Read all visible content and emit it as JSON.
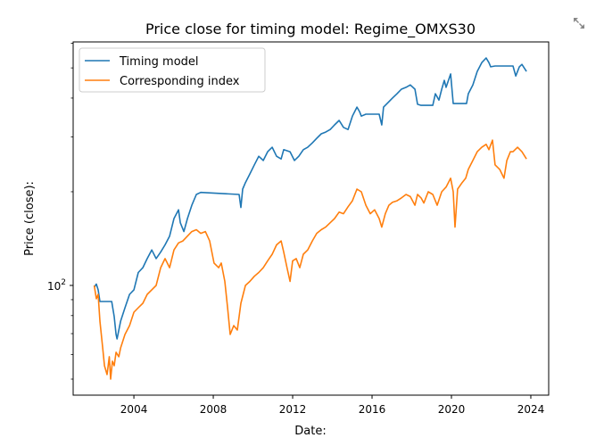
{
  "toolbar": {
    "expand_icon": "expand-arrows-icon"
  },
  "chart_data": {
    "type": "line",
    "title": "Price close for timing model: Regime_OMXS30",
    "xlabel": "Date:",
    "ylabel": "Price (close):",
    "yscale": "log",
    "xlim": [
      2000.94,
      2024.9
    ],
    "ylim": [
      44.4,
      606
    ],
    "x_ticks": [
      2004,
      2008,
      2012,
      2016,
      2020,
      2024
    ],
    "x_tick_labels": [
      "2004",
      "2008",
      "2012",
      "2016",
      "2020",
      "2024"
    ],
    "y_major_ticks": [
      100
    ],
    "y_tick_labels": {
      "base": "10",
      "exp": "2"
    },
    "y_minor_ticks": [
      50,
      60,
      70,
      80,
      90,
      200,
      300,
      400,
      500,
      600
    ],
    "grid": false,
    "legend_position": "top-left",
    "series": [
      {
        "name": "Timing model",
        "color": "#1f77b4",
        "points": [
          [
            2002.0,
            98.7
          ],
          [
            2002.11,
            101
          ],
          [
            2002.2,
            96.8
          ],
          [
            2002.29,
            88.8
          ],
          [
            2002.88,
            88.8
          ],
          [
            2003.01,
            79.4
          ],
          [
            2003.1,
            69.6
          ],
          [
            2003.15,
            67.3
          ],
          [
            2003.33,
            76.8
          ],
          [
            2003.55,
            84.8
          ],
          [
            2003.78,
            93.6
          ],
          [
            2004.0,
            96.8
          ],
          [
            2004.22,
            110
          ],
          [
            2004.45,
            114
          ],
          [
            2004.67,
            122
          ],
          [
            2004.9,
            130
          ],
          [
            2005.12,
            122
          ],
          [
            2005.35,
            128
          ],
          [
            2005.57,
            135
          ],
          [
            2005.8,
            144
          ],
          [
            2006.02,
            164
          ],
          [
            2006.25,
            175
          ],
          [
            2006.34,
            159
          ],
          [
            2006.52,
            149
          ],
          [
            2006.7,
            164
          ],
          [
            2006.92,
            181
          ],
          [
            2007.15,
            196
          ],
          [
            2007.37,
            199
          ],
          [
            2009.3,
            196
          ],
          [
            2009.39,
            178
          ],
          [
            2009.48,
            204
          ],
          [
            2009.62,
            214
          ],
          [
            2009.84,
            228
          ],
          [
            2010.07,
            244
          ],
          [
            2010.29,
            260
          ],
          [
            2010.52,
            252
          ],
          [
            2010.74,
            269
          ],
          [
            2010.97,
            278
          ],
          [
            2011.19,
            260
          ],
          [
            2011.42,
            255
          ],
          [
            2011.55,
            273
          ],
          [
            2011.87,
            269
          ],
          [
            2012.09,
            252
          ],
          [
            2012.31,
            260
          ],
          [
            2012.54,
            273
          ],
          [
            2012.76,
            278
          ],
          [
            2012.99,
            287
          ],
          [
            2013.21,
            297
          ],
          [
            2013.44,
            307
          ],
          [
            2013.66,
            311
          ],
          [
            2013.89,
            317
          ],
          [
            2014.11,
            328
          ],
          [
            2014.34,
            339
          ],
          [
            2014.56,
            322
          ],
          [
            2014.79,
            317
          ],
          [
            2015.01,
            350
          ],
          [
            2015.24,
            374
          ],
          [
            2015.37,
            362
          ],
          [
            2015.46,
            350
          ],
          [
            2015.69,
            355
          ],
          [
            2016.36,
            355
          ],
          [
            2016.49,
            328
          ],
          [
            2016.58,
            374
          ],
          [
            2016.81,
            387
          ],
          [
            2017.03,
            400
          ],
          [
            2017.26,
            413
          ],
          [
            2017.48,
            427
          ],
          [
            2017.71,
            433
          ],
          [
            2017.93,
            441
          ],
          [
            2018.16,
            427
          ],
          [
            2018.29,
            382
          ],
          [
            2018.47,
            379
          ],
          [
            2019.06,
            379
          ],
          [
            2019.19,
            413
          ],
          [
            2019.37,
            394
          ],
          [
            2019.51,
            427
          ],
          [
            2019.64,
            456
          ],
          [
            2019.73,
            433
          ],
          [
            2019.96,
            478
          ],
          [
            2020.09,
            384
          ],
          [
            2020.76,
            384
          ],
          [
            2020.85,
            413
          ],
          [
            2021.08,
            441
          ],
          [
            2021.3,
            487
          ],
          [
            2021.53,
            520
          ],
          [
            2021.75,
            538
          ],
          [
            2021.89,
            520
          ],
          [
            2021.98,
            504
          ],
          [
            2022.2,
            507
          ],
          [
            2023.1,
            507
          ],
          [
            2023.24,
            471
          ],
          [
            2023.42,
            504
          ],
          [
            2023.55,
            513
          ],
          [
            2023.78,
            487
          ]
        ]
      },
      {
        "name": "Corresponding index",
        "color": "#ff7f0e",
        "points": [
          [
            2002.0,
            100
          ],
          [
            2002.11,
            90.6
          ],
          [
            2002.2,
            93.6
          ],
          [
            2002.29,
            76.8
          ],
          [
            2002.43,
            63.0
          ],
          [
            2002.52,
            55.2
          ],
          [
            2002.65,
            51.7
          ],
          [
            2002.76,
            59.0
          ],
          [
            2002.83,
            50.0
          ],
          [
            2002.92,
            57.1
          ],
          [
            2003.01,
            55.2
          ],
          [
            2003.1,
            61.0
          ],
          [
            2003.24,
            59.0
          ],
          [
            2003.33,
            63.0
          ],
          [
            2003.55,
            69.6
          ],
          [
            2003.78,
            74.3
          ],
          [
            2004.0,
            82.0
          ],
          [
            2004.22,
            84.8
          ],
          [
            2004.45,
            87.6
          ],
          [
            2004.67,
            93.6
          ],
          [
            2004.9,
            96.8
          ],
          [
            2005.12,
            100
          ],
          [
            2005.35,
            114
          ],
          [
            2005.57,
            122
          ],
          [
            2005.8,
            114
          ],
          [
            2006.02,
            130
          ],
          [
            2006.25,
            137
          ],
          [
            2006.47,
            139
          ],
          [
            2006.7,
            144
          ],
          [
            2006.92,
            149
          ],
          [
            2007.15,
            151
          ],
          [
            2007.37,
            147
          ],
          [
            2007.6,
            149
          ],
          [
            2007.82,
            139
          ],
          [
            2008.04,
            118
          ],
          [
            2008.27,
            114
          ],
          [
            2008.4,
            118
          ],
          [
            2008.58,
            103
          ],
          [
            2008.72,
            84.8
          ],
          [
            2008.85,
            69.6
          ],
          [
            2009.03,
            74.3
          ],
          [
            2009.21,
            71.9
          ],
          [
            2009.39,
            87.6
          ],
          [
            2009.62,
            100
          ],
          [
            2009.84,
            103
          ],
          [
            2010.07,
            107
          ],
          [
            2010.29,
            110
          ],
          [
            2010.52,
            114
          ],
          [
            2010.74,
            120
          ],
          [
            2010.97,
            126
          ],
          [
            2011.19,
            135
          ],
          [
            2011.42,
            139
          ],
          [
            2011.55,
            128
          ],
          [
            2011.73,
            113
          ],
          [
            2011.87,
            103
          ],
          [
            2012.0,
            120
          ],
          [
            2012.18,
            122
          ],
          [
            2012.36,
            114
          ],
          [
            2012.54,
            126
          ],
          [
            2012.76,
            130
          ],
          [
            2012.99,
            139
          ],
          [
            2013.21,
            147
          ],
          [
            2013.44,
            151
          ],
          [
            2013.66,
            154
          ],
          [
            2013.89,
            159
          ],
          [
            2014.11,
            164
          ],
          [
            2014.34,
            172
          ],
          [
            2014.56,
            170
          ],
          [
            2014.79,
            179
          ],
          [
            2015.01,
            187
          ],
          [
            2015.24,
            204
          ],
          [
            2015.46,
            200
          ],
          [
            2015.69,
            181
          ],
          [
            2015.91,
            170
          ],
          [
            2016.13,
            175
          ],
          [
            2016.36,
            164
          ],
          [
            2016.49,
            154
          ],
          [
            2016.67,
            170
          ],
          [
            2016.85,
            181
          ],
          [
            2017.03,
            185
          ],
          [
            2017.26,
            187
          ],
          [
            2017.48,
            191
          ],
          [
            2017.71,
            196
          ],
          [
            2017.93,
            193
          ],
          [
            2018.16,
            181
          ],
          [
            2018.29,
            196
          ],
          [
            2018.47,
            191
          ],
          [
            2018.61,
            184
          ],
          [
            2018.83,
            200
          ],
          [
            2019.06,
            196
          ],
          [
            2019.28,
            181
          ],
          [
            2019.51,
            200
          ],
          [
            2019.73,
            207
          ],
          [
            2019.96,
            221
          ],
          [
            2020.09,
            200
          ],
          [
            2020.18,
            154
          ],
          [
            2020.31,
            204
          ],
          [
            2020.54,
            214
          ],
          [
            2020.72,
            221
          ],
          [
            2020.85,
            236
          ],
          [
            2021.08,
            252
          ],
          [
            2021.3,
            269
          ],
          [
            2021.53,
            278
          ],
          [
            2021.75,
            284
          ],
          [
            2021.89,
            273
          ],
          [
            2022.07,
            293
          ],
          [
            2022.2,
            244
          ],
          [
            2022.43,
            236
          ],
          [
            2022.65,
            221
          ],
          [
            2022.79,
            252
          ],
          [
            2022.97,
            269
          ],
          [
            2023.1,
            269
          ],
          [
            2023.33,
            278
          ],
          [
            2023.55,
            269
          ],
          [
            2023.78,
            255
          ]
        ]
      }
    ]
  }
}
